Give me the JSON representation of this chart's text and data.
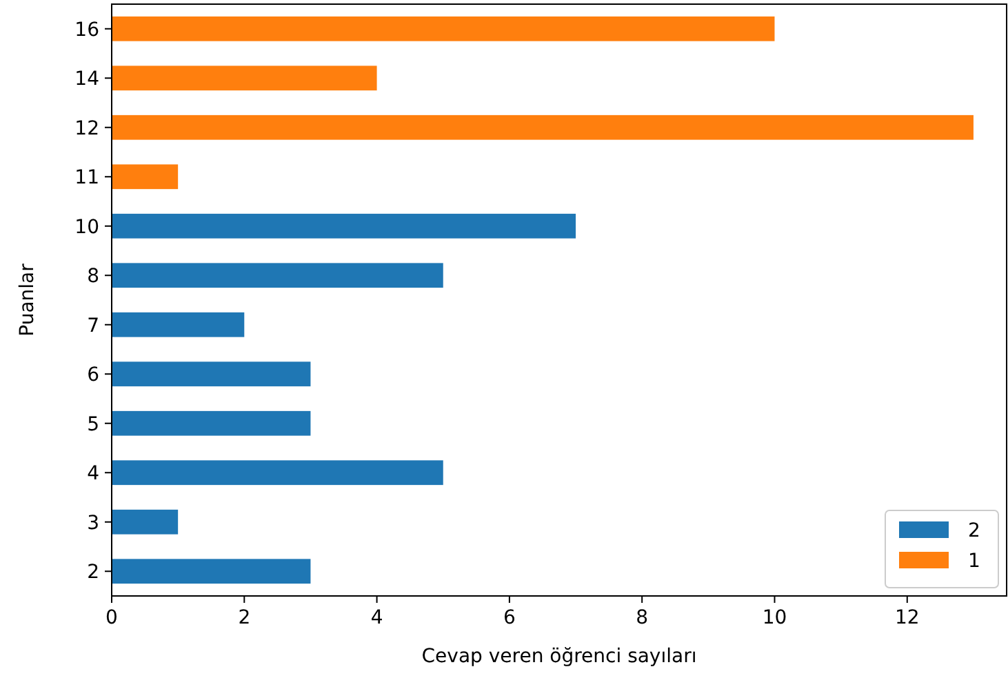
{
  "chart_data": {
    "type": "bar",
    "orientation": "horizontal",
    "xlabel": "Cevap veren öğrenci sayıları",
    "ylabel": "Puanlar",
    "categories": [
      "16",
      "14",
      "12",
      "11",
      "10",
      "8",
      "7",
      "6",
      "5",
      "4",
      "3",
      "2"
    ],
    "series": [
      {
        "name": "2",
        "color": "#1f77b4",
        "values": [
          null,
          null,
          null,
          null,
          7,
          5,
          2,
          3,
          3,
          5,
          1,
          3
        ]
      },
      {
        "name": "1",
        "color": "#ff7f0e",
        "values": [
          10,
          4,
          13,
          1,
          null,
          null,
          null,
          null,
          null,
          null,
          null,
          null
        ]
      }
    ],
    "xlim": [
      0,
      13.5
    ],
    "xticks": [
      0,
      2,
      4,
      6,
      8,
      10,
      12
    ],
    "legend": "bottom right"
  }
}
